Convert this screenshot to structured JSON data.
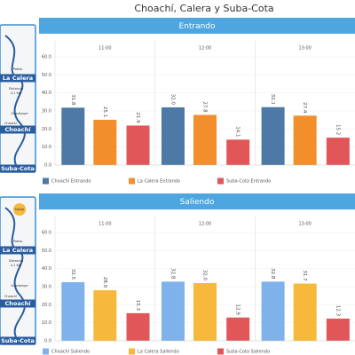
{
  "header": {
    "title": "Choachí, Calera y Suba-Cota"
  },
  "maps": [
    {
      "labels": [
        "Patios",
        "La Calera",
        "Distancia",
        "4,1 Km",
        "Guadalupe",
        "Choachí",
        "Choachí",
        "Suba-Cota"
      ]
    },
    {
      "labels": [
        "Salida",
        "Patios",
        "La Calera",
        "Distancia",
        "4,1 Km",
        "Guadalupe",
        "Choachí",
        "Choachí",
        "Suba-Cota"
      ]
    }
  ],
  "chart_data": [
    {
      "type": "bar",
      "title": "Entrando",
      "categories": [
        "11:00",
        "12:00",
        "13:00"
      ],
      "ylim": [
        0,
        60
      ],
      "yticks": [
        {
          "value": 0,
          "label": "0.0"
        },
        {
          "value": 10,
          "label": "10.0"
        },
        {
          "value": 20,
          "label": "20.0"
        },
        {
          "value": 30,
          "label": "30.0"
        },
        {
          "value": 40,
          "label": "40.0"
        },
        {
          "value": 50,
          "label": "50.0"
        },
        {
          "value": 60,
          "label": "60.0"
        }
      ],
      "series": [
        {
          "name": "Choachí Entrando",
          "color": "#4e79a7",
          "values": [
            31.8,
            32.0,
            32.1
          ],
          "value_labels": [
            "31.8",
            "32.0",
            "32.1"
          ]
        },
        {
          "name": "La Calera Entrando",
          "color": "#f28e2b",
          "values": [
            25.1,
            27.8,
            27.4
          ],
          "value_labels": [
            "25.1",
            "27.8",
            "27.4"
          ]
        },
        {
          "name": "Suba-Cota Entrando",
          "color": "#e15759",
          "values": [
            21.9,
            14.1,
            15.2
          ],
          "value_labels": [
            "21.9",
            "14.1",
            "15.2"
          ]
        }
      ]
    },
    {
      "type": "bar",
      "title": "Saliendo",
      "categories": [
        "11:00",
        "12:00",
        "13:00"
      ],
      "ylim": [
        0,
        60
      ],
      "yticks": [
        {
          "value": 0,
          "label": "0.0"
        },
        {
          "value": 10,
          "label": "10.0"
        },
        {
          "value": 20,
          "label": "20.0"
        },
        {
          "value": 30,
          "label": "30.0"
        },
        {
          "value": 40,
          "label": "40.0"
        },
        {
          "value": 50,
          "label": "50.0"
        },
        {
          "value": 60,
          "label": "60.0"
        }
      ],
      "series": [
        {
          "name": "Choachí Saliendo",
          "color": "#7fb2ea",
          "values": [
            32.5,
            32.8,
            32.8
          ],
          "value_labels": [
            "32.5",
            "32.8",
            "32.8"
          ]
        },
        {
          "name": "La Calera Saliendo",
          "color": "#f6b93b",
          "values": [
            28.0,
            32.0,
            31.7
          ],
          "value_labels": [
            "28.0",
            "32.0",
            "31.7"
          ]
        },
        {
          "name": "Suba-Cota Saliendo",
          "color": "#e15759",
          "values": [
            15.3,
            12.9,
            12.3
          ],
          "value_labels": [
            "15.3",
            "12.9",
            "12.3"
          ]
        }
      ]
    }
  ]
}
